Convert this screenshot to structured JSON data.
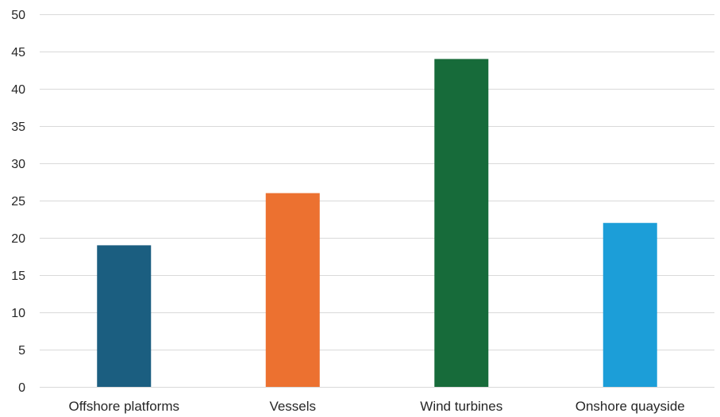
{
  "chart_data": {
    "type": "bar",
    "title": "",
    "xlabel": "",
    "ylabel": "",
    "categories": [
      "Offshore platforms",
      "Vessels",
      "Wind turbines",
      "Onshore quayside"
    ],
    "values": [
      19,
      26,
      44,
      22
    ],
    "colors": [
      "#1b5e80",
      "#ec7130",
      "#176b3a",
      "#1c9ed8"
    ],
    "ylim": [
      0,
      50
    ],
    "yticks": [
      0,
      5,
      10,
      15,
      20,
      25,
      30,
      35,
      40,
      45,
      50
    ],
    "grid": true,
    "legend": "none"
  }
}
